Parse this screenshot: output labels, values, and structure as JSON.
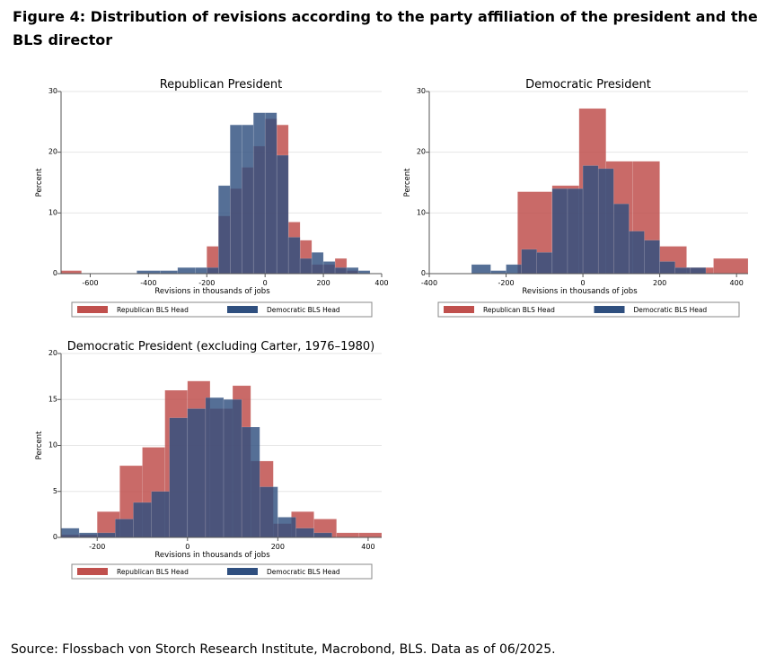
{
  "figure": {
    "title": "Figure 4: Distribution of revisions according to the party affiliation of the president and the BLS director",
    "source": "Source: Flossbach von Storch Research Institute, Macrobond, BLS. Data as of 06/2025."
  },
  "colors": {
    "republican": "#c0504d",
    "democratic": "#2f4f7f",
    "overlap": "#3a3a5e"
  },
  "chart_data": [
    {
      "type": "bar",
      "title": "Republican President",
      "xlabel": "Revisions in thousands of jobs",
      "ylabel": "Percent",
      "xlim": [
        -700,
        400
      ],
      "ylim": [
        0,
        30
      ],
      "xticks": [
        -600,
        -400,
        -200,
        0,
        200,
        400
      ],
      "xtick_labels": [
        "-600",
        "-400",
        "-200",
        "0",
        "200",
        "400"
      ],
      "yticks": [
        0,
        10,
        20,
        30
      ],
      "ytick_labels": [
        "0",
        "10",
        "20",
        "30"
      ],
      "legend": [
        "Republican BLS Head",
        "Democratic BLS Head"
      ],
      "series": [
        {
          "name": "Republican BLS Head",
          "bins": [
            [
              -700,
              -630,
              0.5
            ],
            [
              -200,
              -160,
              4.5
            ],
            [
              -160,
              -120,
              9.5
            ],
            [
              -120,
              -80,
              14
            ],
            [
              -80,
              -40,
              17.5
            ],
            [
              -40,
              0,
              21
            ],
            [
              0,
              40,
              25.5
            ],
            [
              40,
              80,
              24.5
            ],
            [
              80,
              120,
              8.5
            ],
            [
              120,
              160,
              5.5
            ],
            [
              160,
              200,
              1.5
            ],
            [
              200,
              240,
              1.5
            ],
            [
              240,
              280,
              2.5
            ],
            [
              280,
              320,
              0.5
            ]
          ]
        },
        {
          "name": "Democratic BLS Head",
          "bins": [
            [
              -440,
              -360,
              0.5
            ],
            [
              -360,
              -300,
              0.5
            ],
            [
              -300,
              -240,
              1.0
            ],
            [
              -240,
              -200,
              1.0
            ],
            [
              -200,
              -160,
              1.0
            ],
            [
              -160,
              -120,
              14.5
            ],
            [
              -120,
              -80,
              24.5
            ],
            [
              -80,
              -40,
              24.5
            ],
            [
              -40,
              0,
              26.5
            ],
            [
              0,
              40,
              26.5
            ],
            [
              40,
              80,
              19.5
            ],
            [
              80,
              120,
              6.0
            ],
            [
              120,
              160,
              2.5
            ],
            [
              160,
              200,
              3.5
            ],
            [
              200,
              240,
              2.0
            ],
            [
              240,
              280,
              1.0
            ],
            [
              280,
              320,
              1.0
            ],
            [
              320,
              360,
              0.5
            ]
          ]
        }
      ]
    },
    {
      "type": "bar",
      "title": "Democratic President",
      "xlabel": "Revisions in thousands of jobs",
      "ylabel": "Percent",
      "xlim": [
        -400,
        430
      ],
      "ylim": [
        0,
        30
      ],
      "xticks": [
        -400,
        -200,
        0,
        200,
        400
      ],
      "xtick_labels": [
        "-400",
        "-200",
        "0",
        "200",
        "400"
      ],
      "yticks": [
        0,
        10,
        20,
        30
      ],
      "ytick_labels": [
        "0",
        "10",
        "20",
        "30"
      ],
      "legend": [
        "Republican BLS Head",
        "Democratic BLS Head"
      ],
      "series": [
        {
          "name": "Republican BLS Head",
          "bins": [
            [
              -170,
              -80,
              13.5
            ],
            [
              -80,
              -10,
              14.5
            ],
            [
              -10,
              60,
              27.2
            ],
            [
              60,
              130,
              18.5
            ],
            [
              130,
              200,
              18.5
            ],
            [
              200,
              270,
              4.5
            ],
            [
              270,
              340,
              1.0
            ],
            [
              340,
              430,
              2.5
            ]
          ]
        },
        {
          "name": "Democratic BLS Head",
          "bins": [
            [
              -290,
              -240,
              1.5
            ],
            [
              -240,
              -200,
              0.5
            ],
            [
              -200,
              -160,
              1.5
            ],
            [
              -160,
              -120,
              4.0
            ],
            [
              -120,
              -80,
              3.5
            ],
            [
              -80,
              -40,
              14
            ],
            [
              -40,
              0,
              14
            ],
            [
              0,
              40,
              17.8
            ],
            [
              40,
              80,
              17.3
            ],
            [
              80,
              120,
              11.5
            ],
            [
              120,
              160,
              7.0
            ],
            [
              160,
              200,
              5.5
            ],
            [
              200,
              240,
              2.0
            ],
            [
              240,
              280,
              1.0
            ],
            [
              280,
              320,
              1.0
            ]
          ]
        }
      ]
    },
    {
      "type": "bar",
      "title": "Democratic President (excluding Carter, 1976–1980)",
      "xlabel": "Revisions in thousands of jobs",
      "ylabel": "Percent",
      "xlim": [
        -280,
        430
      ],
      "ylim": [
        0,
        20
      ],
      "xticks": [
        -200,
        0,
        200,
        400
      ],
      "xtick_labels": [
        "-200",
        "0",
        "200",
        "400"
      ],
      "yticks": [
        0,
        5,
        10,
        15,
        20
      ],
      "ytick_labels": [
        "0",
        "5",
        "10",
        "15",
        "20"
      ],
      "legend": [
        "Republican BLS Head",
        "Democratic BLS Head"
      ],
      "series": [
        {
          "name": "Republican BLS Head",
          "bins": [
            [
              -280,
              -240,
              0.3
            ],
            [
              -240,
              -200,
              0.3
            ],
            [
              -200,
              -150,
              2.8
            ],
            [
              -150,
              -100,
              7.8
            ],
            [
              -100,
              -50,
              9.8
            ],
            [
              -50,
              0,
              16.0
            ],
            [
              0,
              50,
              17.0
            ],
            [
              50,
              100,
              14.0
            ],
            [
              100,
              140,
              16.5
            ],
            [
              140,
              190,
              8.3
            ],
            [
              190,
              230,
              1.5
            ],
            [
              230,
              280,
              2.8
            ],
            [
              280,
              330,
              2.0
            ],
            [
              330,
              380,
              0.5
            ],
            [
              380,
              430,
              0.5
            ]
          ]
        },
        {
          "name": "Democratic BLS Head",
          "bins": [
            [
              -280,
              -240,
              1.0
            ],
            [
              -240,
              -200,
              0.5
            ],
            [
              -200,
              -160,
              0.5
            ],
            [
              -160,
              -120,
              2.0
            ],
            [
              -120,
              -80,
              3.8
            ],
            [
              -80,
              -40,
              5.0
            ],
            [
              -40,
              0,
              13.0
            ],
            [
              0,
              40,
              14.0
            ],
            [
              40,
              80,
              15.2
            ],
            [
              80,
              120,
              15.0
            ],
            [
              120,
              160,
              12.0
            ],
            [
              160,
              200,
              5.5
            ],
            [
              200,
              240,
              2.2
            ],
            [
              240,
              280,
              1.0
            ],
            [
              280,
              320,
              0.5
            ]
          ]
        }
      ]
    }
  ]
}
